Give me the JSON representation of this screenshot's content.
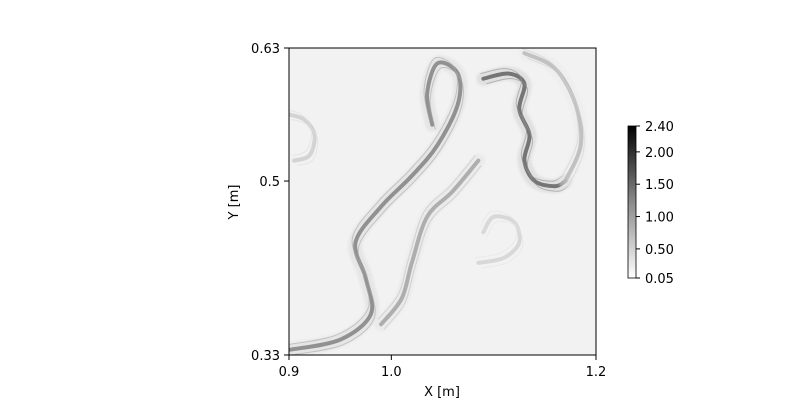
{
  "chart_data": {
    "type": "heatmap",
    "title": "",
    "xlabel": "X [m]",
    "ylabel": "Y [m]",
    "xlim": [
      0.9,
      1.2
    ],
    "ylim": [
      0.33,
      0.63
    ],
    "x_ticks": [
      0.9,
      1.0,
      1.2
    ],
    "x_tick_labels": [
      "0.9",
      "1.0",
      "1.2"
    ],
    "y_ticks": [
      0.33,
      0.5,
      0.63
    ],
    "y_tick_labels": [
      "0.33",
      "0.5",
      "0.63"
    ],
    "colormap": "grayscale (white = low, black = high)",
    "colorbar": {
      "min": 0.05,
      "max": 2.4,
      "ticks": [
        0.05,
        0.5,
        1.0,
        1.5,
        2.0,
        2.4
      ],
      "tick_labels": [
        "0.05",
        "0.50",
        "1.00",
        "1.50",
        "2.00",
        "2.40"
      ]
    },
    "grid": false,
    "features": [
      {
        "name": "main-s-shaped-filament",
        "value": 1.2,
        "path": [
          [
            0.9,
            0.335
          ],
          [
            0.95,
            0.345
          ],
          [
            0.98,
            0.37
          ],
          [
            0.975,
            0.405
          ],
          [
            0.965,
            0.44
          ],
          [
            0.99,
            0.475
          ],
          [
            1.02,
            0.505
          ],
          [
            1.045,
            0.535
          ],
          [
            1.065,
            0.575
          ],
          [
            1.065,
            0.605
          ],
          [
            1.045,
            0.615
          ],
          [
            1.035,
            0.585
          ],
          [
            1.04,
            0.555
          ]
        ]
      },
      {
        "name": "inner-return-filament",
        "value": 0.9,
        "path": [
          [
            0.99,
            0.36
          ],
          [
            1.01,
            0.385
          ],
          [
            1.02,
            0.42
          ],
          [
            1.035,
            0.465
          ],
          [
            1.06,
            0.49
          ],
          [
            1.085,
            0.52
          ]
        ]
      },
      {
        "name": "mushroom-roll-up",
        "value": 1.5,
        "path": [
          [
            1.09,
            0.6
          ],
          [
            1.115,
            0.605
          ],
          [
            1.13,
            0.595
          ],
          [
            1.125,
            0.57
          ],
          [
            1.135,
            0.545
          ],
          [
            1.13,
            0.52
          ],
          [
            1.14,
            0.5
          ],
          [
            1.16,
            0.495
          ],
          [
            1.17,
            0.5
          ]
        ]
      },
      {
        "name": "outer-right-arc",
        "value": 0.7,
        "path": [
          [
            1.13,
            0.625
          ],
          [
            1.16,
            0.61
          ],
          [
            1.18,
            0.575
          ],
          [
            1.185,
            0.535
          ],
          [
            1.17,
            0.5
          ]
        ]
      },
      {
        "name": "lower-vortex",
        "value": 0.45,
        "path": [
          [
            1.085,
            0.42
          ],
          [
            1.11,
            0.425
          ],
          [
            1.125,
            0.44
          ],
          [
            1.12,
            0.46
          ],
          [
            1.1,
            0.465
          ],
          [
            1.09,
            0.45
          ]
        ]
      },
      {
        "name": "left-swirl",
        "value": 0.5,
        "path": [
          [
            0.9,
            0.565
          ],
          [
            0.915,
            0.56
          ],
          [
            0.925,
            0.545
          ],
          [
            0.92,
            0.525
          ],
          [
            0.905,
            0.52
          ]
        ]
      }
    ]
  }
}
